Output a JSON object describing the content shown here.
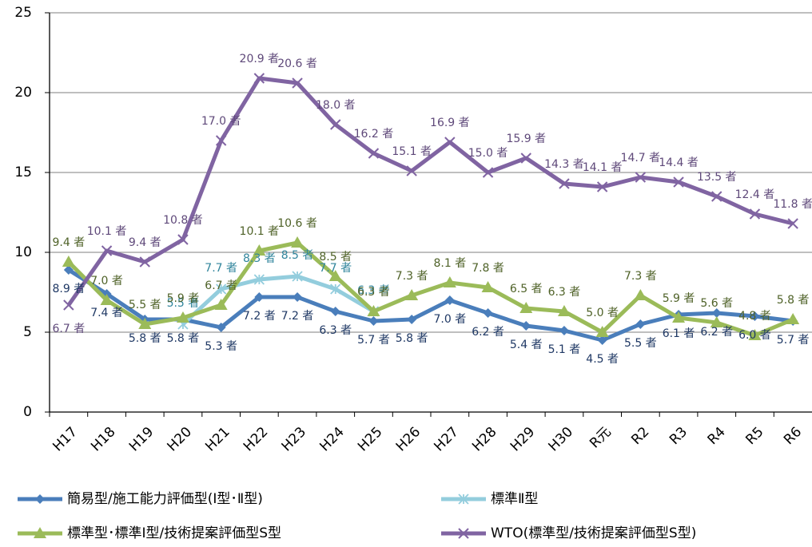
{
  "chart_data": {
    "type": "line",
    "categories": [
      "H17",
      "H18",
      "H19",
      "H20",
      "H21",
      "H22",
      "H23",
      "H24",
      "H25",
      "H26",
      "H27",
      "H28",
      "H29",
      "H30",
      "R元",
      "R2",
      "R3",
      "R4",
      "R5",
      "R6"
    ],
    "ylim": [
      0,
      25
    ],
    "yticks": [
      0,
      5,
      10,
      15,
      20,
      25
    ],
    "grid": true,
    "series": [
      {
        "name": "簡易型/施工能力評価型(Ⅰ型･Ⅱ型)",
        "color": "#4a7ebb",
        "label_color": "#1f3864",
        "marker": "diamond",
        "values": [
          8.9,
          7.4,
          5.8,
          5.8,
          5.3,
          7.2,
          7.2,
          6.3,
          5.7,
          5.8,
          7.0,
          6.2,
          5.4,
          5.1,
          4.5,
          5.5,
          6.1,
          6.2,
          6.0,
          5.7
        ],
        "value_labels": [
          "8.9 者",
          "7.4 者",
          "5.8 者",
          "5.8 者",
          "5.3 者",
          "7.2 者",
          "7.2 者",
          "6.3 者",
          "5.7 者",
          "5.8 者",
          "7.0 者",
          "6.2 者",
          "5.4 者",
          "5.1 者",
          "4.5 者",
          "5.5 者",
          "6.1 者",
          "6.2 者",
          "6.0 者",
          "5.7 者"
        ]
      },
      {
        "name": "標準Ⅱ型",
        "color": "#93cddd",
        "label_color": "#31859c",
        "marker": "star",
        "values": [
          null,
          null,
          null,
          5.5,
          7.7,
          8.3,
          8.5,
          7.7,
          6.3,
          null,
          null,
          null,
          null,
          null,
          null,
          null,
          null,
          null,
          null,
          null
        ],
        "value_labels": [
          null,
          null,
          null,
          "5.5 者",
          "7.7 者",
          "8.3 者",
          "8.5 者",
          "7.7 者",
          "6.3 者",
          null,
          null,
          null,
          null,
          null,
          null,
          null,
          null,
          null,
          null,
          null
        ]
      },
      {
        "name": "標準型･標準Ⅰ型/技術提案評価型S型",
        "color": "#9bbb59",
        "label_color": "#4f6228",
        "marker": "triangle",
        "values": [
          9.4,
          7.0,
          5.5,
          5.9,
          6.7,
          10.1,
          10.6,
          8.5,
          6.3,
          7.3,
          8.1,
          7.8,
          6.5,
          6.3,
          5.0,
          7.3,
          5.9,
          5.6,
          4.8,
          5.8
        ],
        "value_labels": [
          "9.4 者",
          "7.0 者",
          "5.5 者",
          "5.9 者",
          "6.7 者",
          "10.1 者",
          "10.6 者",
          "8.5 者",
          "6.3 者",
          "7.3 者",
          "8.1 者",
          "7.8 者",
          "6.5 者",
          "6.3 者",
          "5.0 者",
          "7.3 者",
          "5.9 者",
          "5.6 者",
          "4.8 者",
          "5.8 者"
        ]
      },
      {
        "name": "WTO(標準型/技術提案評価型S型)",
        "color": "#8064a2",
        "label_color": "#5f497a",
        "marker": "x",
        "values": [
          6.7,
          10.1,
          9.4,
          10.8,
          17.0,
          20.9,
          20.6,
          18.0,
          16.2,
          15.1,
          16.9,
          15.0,
          15.9,
          14.3,
          14.1,
          14.7,
          14.4,
          13.5,
          12.4,
          11.8
        ],
        "value_labels": [
          "6.7 者",
          "10.1 者",
          "9.4 者",
          "10.8 者",
          "17.0 者",
          "20.9 者",
          "20.6 者",
          "18.0 者",
          "16.2 者",
          "15.1 者",
          "16.9 者",
          "15.0 者",
          "15.9 者",
          "14.3 者",
          "14.1 者",
          "14.7 者",
          "14.4 者",
          "13.5 者",
          "12.4 者",
          "11.8 者"
        ]
      }
    ]
  }
}
